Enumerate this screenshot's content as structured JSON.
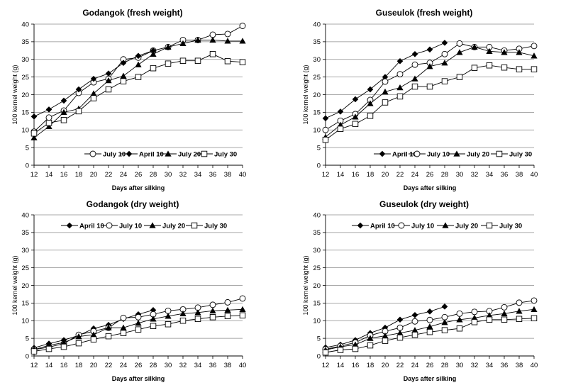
{
  "chart_data": [
    {
      "type": "line",
      "title": "Godangok (fresh weight)",
      "xlabel": "Days after silking",
      "ylabel": "100 kernel weight (g)",
      "xlim": [
        12,
        40
      ],
      "ylim": [
        0,
        40
      ],
      "xticks": [
        "12",
        "14",
        "16",
        "18",
        "20",
        "22",
        "24",
        "26",
        "28",
        "30",
        "32",
        "34",
        "36",
        "38",
        "40"
      ],
      "yticks": [
        "0",
        "5",
        "10",
        "15",
        "20",
        "25",
        "30",
        "35",
        "40"
      ],
      "grid": "horizontal",
      "legend_position": "bottom-right",
      "series": [
        {
          "name": "July 10",
          "marker": "circle-open",
          "x": [
            12,
            14,
            16,
            18,
            20,
            22,
            24,
            26,
            28,
            30,
            32,
            34,
            36,
            38,
            40
          ],
          "values": [
            9.5,
            13.5,
            15.5,
            20.5,
            23.5,
            24.5,
            30,
            30.5,
            32.5,
            33.5,
            35.5,
            35.5,
            37,
            37.2,
            39.5
          ]
        },
        {
          "name": "April 10",
          "marker": "diamond-filled",
          "x": [
            12,
            14,
            16,
            18,
            20,
            22,
            24,
            26,
            28
          ],
          "values": [
            13.8,
            15.8,
            18.3,
            21.5,
            24.5,
            26,
            29,
            31,
            32.5
          ]
        },
        {
          "name": "July 20",
          "marker": "triangle-filled",
          "x": [
            12,
            14,
            16,
            18,
            20,
            22,
            24,
            26,
            28,
            30,
            32,
            34,
            36,
            38,
            40
          ],
          "values": [
            7.8,
            11,
            15,
            16,
            20.3,
            24,
            25.3,
            28.5,
            31.5,
            33.5,
            34.5,
            35.5,
            35.5,
            35.2,
            35.2
          ]
        },
        {
          "name": "July 30",
          "marker": "square-open",
          "x": [
            12,
            14,
            16,
            18,
            20,
            22,
            24,
            26,
            28,
            30,
            32,
            34,
            36,
            38,
            40
          ],
          "values": [
            9,
            12,
            12.8,
            15.3,
            19,
            21.5,
            23.8,
            25,
            27.5,
            28.8,
            29.6,
            29.6,
            31.5,
            29.5,
            29.2
          ]
        }
      ]
    },
    {
      "type": "line",
      "title": "Guseulok (fresh weight)",
      "xlabel": "Days after silking",
      "ylabel": "100 kernel weight (g)",
      "xlim": [
        12,
        40
      ],
      "ylim": [
        0,
        40
      ],
      "xticks": [
        "12",
        "14",
        "16",
        "18",
        "20",
        "22",
        "24",
        "26",
        "28",
        "30",
        "32",
        "34",
        "36",
        "38",
        "40"
      ],
      "yticks": [
        "0",
        "5",
        "10",
        "15",
        "20",
        "25",
        "30",
        "35",
        "40"
      ],
      "grid": "horizontal",
      "legend_position": "bottom",
      "series": [
        {
          "name": "April 10",
          "marker": "diamond-filled",
          "x": [
            12,
            14,
            16,
            18,
            20,
            22,
            24,
            26,
            28
          ],
          "values": [
            13.3,
            15.2,
            18.7,
            21.5,
            25,
            29.5,
            31.5,
            32.8,
            34.7
          ]
        },
        {
          "name": "July 10",
          "marker": "circle-open",
          "x": [
            12,
            14,
            16,
            18,
            20,
            22,
            24,
            26,
            28,
            30,
            32,
            34,
            36,
            38,
            40
          ],
          "values": [
            10,
            12.6,
            14.5,
            18.5,
            23.7,
            25.8,
            28.5,
            29,
            31.5,
            34.5,
            33.5,
            33.5,
            32.5,
            33,
            33.8
          ]
        },
        {
          "name": "July 20",
          "marker": "triangle-filled",
          "x": [
            12,
            14,
            16,
            18,
            20,
            22,
            24,
            26,
            28,
            30,
            32,
            34,
            36,
            38,
            40
          ],
          "values": [
            8,
            11.4,
            13.7,
            17.5,
            20.8,
            22,
            24.5,
            28,
            29,
            32,
            33.5,
            32.3,
            32,
            32,
            31
          ]
        },
        {
          "name": "July 30",
          "marker": "square-open",
          "x": [
            12,
            14,
            16,
            18,
            20,
            22,
            24,
            26,
            28,
            30,
            32,
            34,
            36,
            38,
            40
          ],
          "values": [
            7.2,
            10.3,
            11.7,
            14,
            17.8,
            19.5,
            22.3,
            22.3,
            23.8,
            25,
            27.6,
            28.3,
            27.7,
            27.2,
            27.2
          ]
        }
      ]
    },
    {
      "type": "line",
      "title": "Godangok (dry weight)",
      "xlabel": "Days after silking",
      "ylabel": "100 kernel weight (g)",
      "xlim": [
        12,
        40
      ],
      "ylim": [
        0,
        40
      ],
      "xticks": [
        "12",
        "14",
        "16",
        "18",
        "20",
        "22",
        "24",
        "26",
        "28",
        "30",
        "32",
        "34",
        "36",
        "38",
        "40"
      ],
      "yticks": [
        "0",
        "5",
        "10",
        "15",
        "20",
        "25",
        "30",
        "35",
        "40"
      ],
      "grid": "horizontal",
      "legend_position": "top",
      "series": [
        {
          "name": "April 10",
          "marker": "diamond-filled",
          "x": [
            12,
            14,
            16,
            18,
            20,
            22,
            24,
            26,
            28
          ],
          "values": [
            2.3,
            3.5,
            4.5,
            5.8,
            7.8,
            8.8,
            10.5,
            11.8,
            13
          ]
        },
        {
          "name": "July 10",
          "marker": "circle-open",
          "x": [
            12,
            14,
            16,
            18,
            20,
            22,
            24,
            26,
            28,
            30,
            32,
            34,
            36,
            38,
            40
          ],
          "values": [
            1.8,
            2.5,
            3.5,
            6,
            7,
            8,
            10.8,
            11,
            11.8,
            12.8,
            13.2,
            13.7,
            14.5,
            15.2,
            16.3
          ]
        },
        {
          "name": "July 20",
          "marker": "triangle-filled",
          "x": [
            12,
            14,
            16,
            18,
            20,
            22,
            24,
            26,
            28,
            30,
            32,
            34,
            36,
            38,
            40
          ],
          "values": [
            1.8,
            3,
            3.8,
            5.5,
            6,
            8,
            8,
            9.3,
            10.5,
            11.3,
            12,
            12.3,
            12.8,
            13,
            13.2
          ]
        },
        {
          "name": "July 30",
          "marker": "square-open",
          "x": [
            12,
            14,
            16,
            18,
            20,
            22,
            24,
            26,
            28,
            30,
            32,
            34,
            36,
            38,
            40
          ],
          "values": [
            1.3,
            2,
            2.6,
            3.6,
            4.7,
            5.6,
            6.5,
            7.5,
            8.5,
            9,
            10,
            10.5,
            11,
            11.3,
            11.5
          ]
        }
      ]
    },
    {
      "type": "line",
      "title": "Guseulok (dry weight)",
      "xlabel": "Days after silking",
      "ylabel": "100 kernel weight (g)",
      "xlim": [
        12,
        40
      ],
      "ylim": [
        0,
        40
      ],
      "xticks": [
        "12",
        "14",
        "16",
        "18",
        "20",
        "22",
        "24",
        "26",
        "28",
        "30",
        "32",
        "34",
        "36",
        "38",
        "40"
      ],
      "yticks": [
        "0",
        "5",
        "10",
        "15",
        "20",
        "25",
        "30",
        "35",
        "40"
      ],
      "grid": "horizontal",
      "legend_position": "top",
      "series": [
        {
          "name": "April 10",
          "marker": "diamond-filled",
          "x": [
            12,
            14,
            16,
            18,
            20,
            22,
            24,
            26,
            28
          ],
          "values": [
            2.4,
            3.2,
            4.5,
            6.5,
            8,
            10.3,
            11.6,
            12.6,
            14
          ]
        },
        {
          "name": "July 10",
          "marker": "circle-open",
          "x": [
            12,
            14,
            16,
            18,
            20,
            22,
            24,
            26,
            28,
            30,
            32,
            34,
            36,
            38,
            40
          ],
          "values": [
            1.9,
            2.8,
            3.8,
            5.8,
            7,
            8,
            9.8,
            10.2,
            11,
            12,
            12.5,
            12.7,
            13.8,
            15.1,
            15.7
          ]
        },
        {
          "name": "July 20",
          "marker": "triangle-filled",
          "x": [
            12,
            14,
            16,
            18,
            20,
            22,
            24,
            26,
            28,
            30,
            32,
            34,
            36,
            38,
            40
          ],
          "values": [
            1.7,
            2.6,
            3.2,
            5,
            5.7,
            6.5,
            7.3,
            8.3,
            9.5,
            10.3,
            10.8,
            11.5,
            12,
            12.7,
            13.2
          ]
        },
        {
          "name": "July 30",
          "marker": "square-open",
          "x": [
            12,
            14,
            16,
            18,
            20,
            22,
            24,
            26,
            28,
            30,
            32,
            34,
            36,
            38,
            40
          ],
          "values": [
            1,
            1.7,
            2,
            3,
            4.3,
            5.2,
            6,
            6.8,
            7.3,
            7.8,
            9.6,
            10.3,
            10.3,
            10.5,
            10.7
          ]
        }
      ]
    }
  ]
}
